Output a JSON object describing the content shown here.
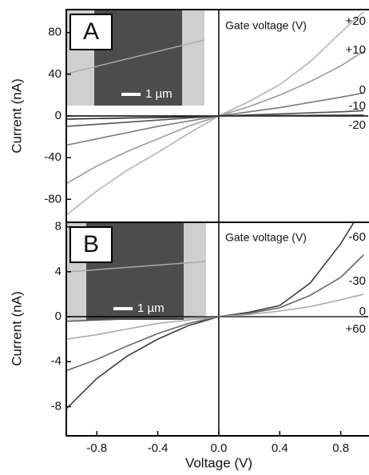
{
  "chart_data": [
    {
      "type": "line",
      "panel_label": "A",
      "inset_scale": "1 µm",
      "annotation": "Gate voltage (V)",
      "ylabel": "Current (nA)",
      "x": [
        -1,
        -0.8,
        -0.6,
        -0.4,
        -0.2,
        0,
        0.2,
        0.4,
        0.6,
        0.8,
        0.95
      ],
      "xlim": [
        -1.0,
        0.98
      ],
      "ylim": [
        -102,
        102
      ],
      "yticks": [
        -80,
        -40,
        0,
        40,
        80
      ],
      "series": [
        {
          "name": "+20",
          "color": "#b4b4b4",
          "values": [
            -95,
            -72,
            -52,
            -35,
            -17,
            0,
            14,
            30,
            52,
            80,
            100
          ]
        },
        {
          "name": "+10",
          "color": "#9a9a9a",
          "values": [
            -65,
            -48,
            -34,
            -22,
            -10,
            0,
            9,
            20,
            33,
            48,
            62
          ]
        },
        {
          "name": "0",
          "color": "#7a7a7a",
          "values": [
            -28,
            -22,
            -16,
            -10,
            -5,
            0,
            4,
            8,
            13,
            18,
            22
          ]
        },
        {
          "name": "-10",
          "color": "#555555",
          "values": [
            -10,
            -8,
            -6,
            -4,
            -2,
            0,
            1,
            2,
            3,
            4,
            5
          ]
        },
        {
          "name": "-20",
          "color": "#2a2a2a",
          "values": [
            -3,
            -2.5,
            -2,
            -1.5,
            -0.8,
            0,
            0.2,
            0.4,
            0.5,
            0.6,
            0.7
          ]
        }
      ]
    },
    {
      "type": "line",
      "panel_label": "B",
      "inset_scale": "1 µm",
      "annotation": "Gate voltage (V)",
      "ylabel": "Current (nA)",
      "xlabel": "Voltage (V)",
      "x": [
        -1,
        -0.8,
        -0.6,
        -0.4,
        -0.2,
        0,
        0.2,
        0.4,
        0.6,
        0.8,
        0.95
      ],
      "xlim": [
        -1.0,
        0.98
      ],
      "ylim": [
        -10.6,
        8.4
      ],
      "yticks": [
        -8,
        -4,
        0,
        4,
        8
      ],
      "xticks": [
        -0.8,
        -0.4,
        {
          "value": 0,
          "label": "0.0"
        },
        0.4,
        0.8
      ],
      "series": [
        {
          "name": "-60",
          "color": "#3c3c3c",
          "values": [
            -8.2,
            -5.5,
            -3.5,
            -2,
            -0.8,
            0,
            0.4,
            1,
            3,
            6.5,
            9.8
          ]
        },
        {
          "name": "-30",
          "color": "#666666",
          "values": [
            -4.8,
            -3.8,
            -2.6,
            -1.5,
            -0.6,
            0,
            0.3,
            0.8,
            1.9,
            3.5,
            5.5
          ]
        },
        {
          "name": "0",
          "color": "#aaaaaa",
          "values": [
            -2,
            -1.6,
            -1.1,
            -0.6,
            -0.3,
            0,
            0.2,
            0.5,
            0.9,
            1.5,
            2
          ]
        },
        {
          "name": "+60",
          "color": "#555555",
          "values": [
            -0.4,
            -0.3,
            -0.2,
            -0.1,
            -0.05,
            0,
            0,
            0,
            0,
            0,
            0
          ]
        }
      ]
    }
  ]
}
